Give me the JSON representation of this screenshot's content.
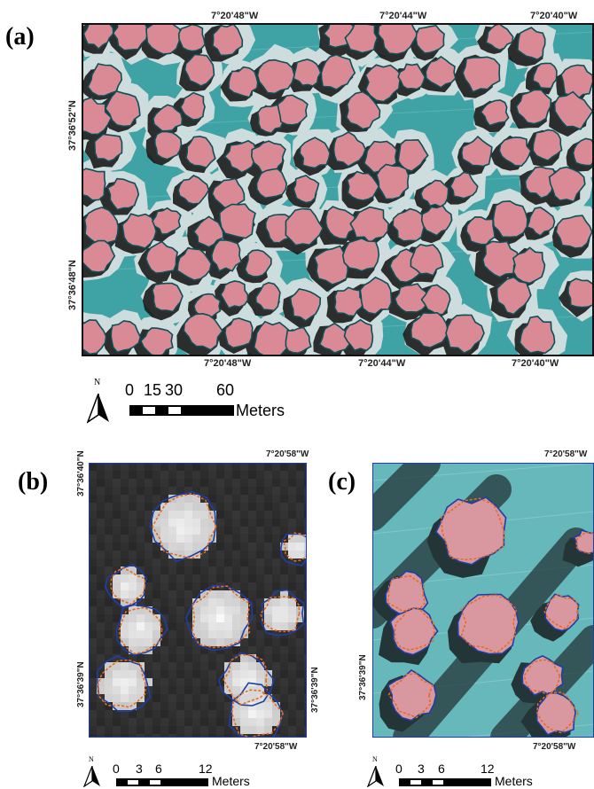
{
  "panels": {
    "a": {
      "label": "(a)",
      "top_coords": [
        "7°20'48\"W",
        "7°20'44\"W",
        "7°20'40\"W"
      ],
      "bottom_coords": [
        "7°20'48\"W",
        "7°20'44\"W",
        "7°20'40\"W"
      ],
      "left_coords": [
        "37°36'52\"N",
        "37°36'48\"N"
      ],
      "north": "N",
      "scale_ticks": [
        "0",
        "15",
        "30",
        "60"
      ],
      "scale_unit": "Meters",
      "colors": {
        "background": "#3fa3a6",
        "crown": "#d98a94",
        "shadow": "#1b1b1b",
        "outline": "#0d4f57",
        "buffer": "#e6e6e6"
      }
    },
    "b": {
      "label": "(b)",
      "top_coord": "7°20'58\"W",
      "bottom_coord": "7°20'58\"W",
      "left_coords": [
        "37°36'40\"N",
        "37°36'39\"N"
      ],
      "right_coord": "37°36'39\"N",
      "north": "N",
      "scale_ticks": [
        "0",
        "3",
        "6",
        "12"
      ],
      "scale_unit": "Meters",
      "colors": {
        "background": "#2e2e2e",
        "crown": "#e8e8e8",
        "outline_blue": "#1c3fa8",
        "outline_orange": "#e86a1a"
      }
    },
    "c": {
      "label": "(c)",
      "top_coord": "7°20'58\"W",
      "bottom_coord": "7°20'58\"W",
      "left_coord": "37°36'39\"N",
      "north": "N",
      "scale_ticks": [
        "0",
        "3",
        "6",
        "12"
      ],
      "scale_unit": "Meters",
      "colors": {
        "background": "#66b8ba",
        "crown": "#d9979f",
        "shadow": "#1e2a2c",
        "outline_blue": "#1c3fa8",
        "outline_orange": "#e86a1a"
      }
    }
  }
}
